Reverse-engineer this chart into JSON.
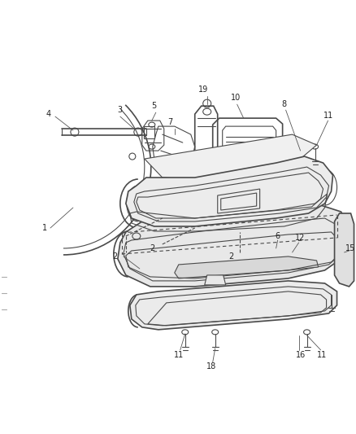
{
  "bg_color": "#ffffff",
  "fig_width": 4.38,
  "fig_height": 5.33,
  "dpi": 100,
  "line_color": "#4a4a4a",
  "text_color": "#222222",
  "label_fontsize": 7.0
}
